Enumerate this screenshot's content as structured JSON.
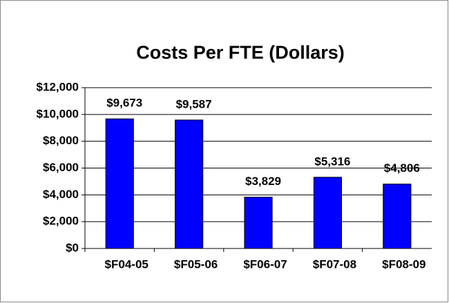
{
  "chart_data": {
    "type": "bar",
    "title": "Costs Per FTE (Dollars)",
    "categories": [
      "$F04-05",
      "$F05-06",
      "$F06-07",
      "$F07-08",
      "$F08-09"
    ],
    "values": [
      9673,
      9587,
      3829,
      5316,
      4806
    ],
    "value_labels": [
      "$9,673",
      "$9,587",
      "$3,829",
      "$5,316",
      "$4,806"
    ],
    "color": "#0000ff",
    "ylim": [
      0,
      12000
    ],
    "yticks": [
      {
        "value": 0,
        "label": "$0"
      },
      {
        "value": 2000,
        "label": "$2,000"
      },
      {
        "value": 4000,
        "label": "$4,000"
      },
      {
        "value": 6000,
        "label": "$6,000"
      },
      {
        "value": 8000,
        "label": "$8,000"
      },
      {
        "value": 10000,
        "label": "$10,000"
      },
      {
        "value": 12000,
        "label": "$12,000"
      }
    ],
    "grid": true
  }
}
